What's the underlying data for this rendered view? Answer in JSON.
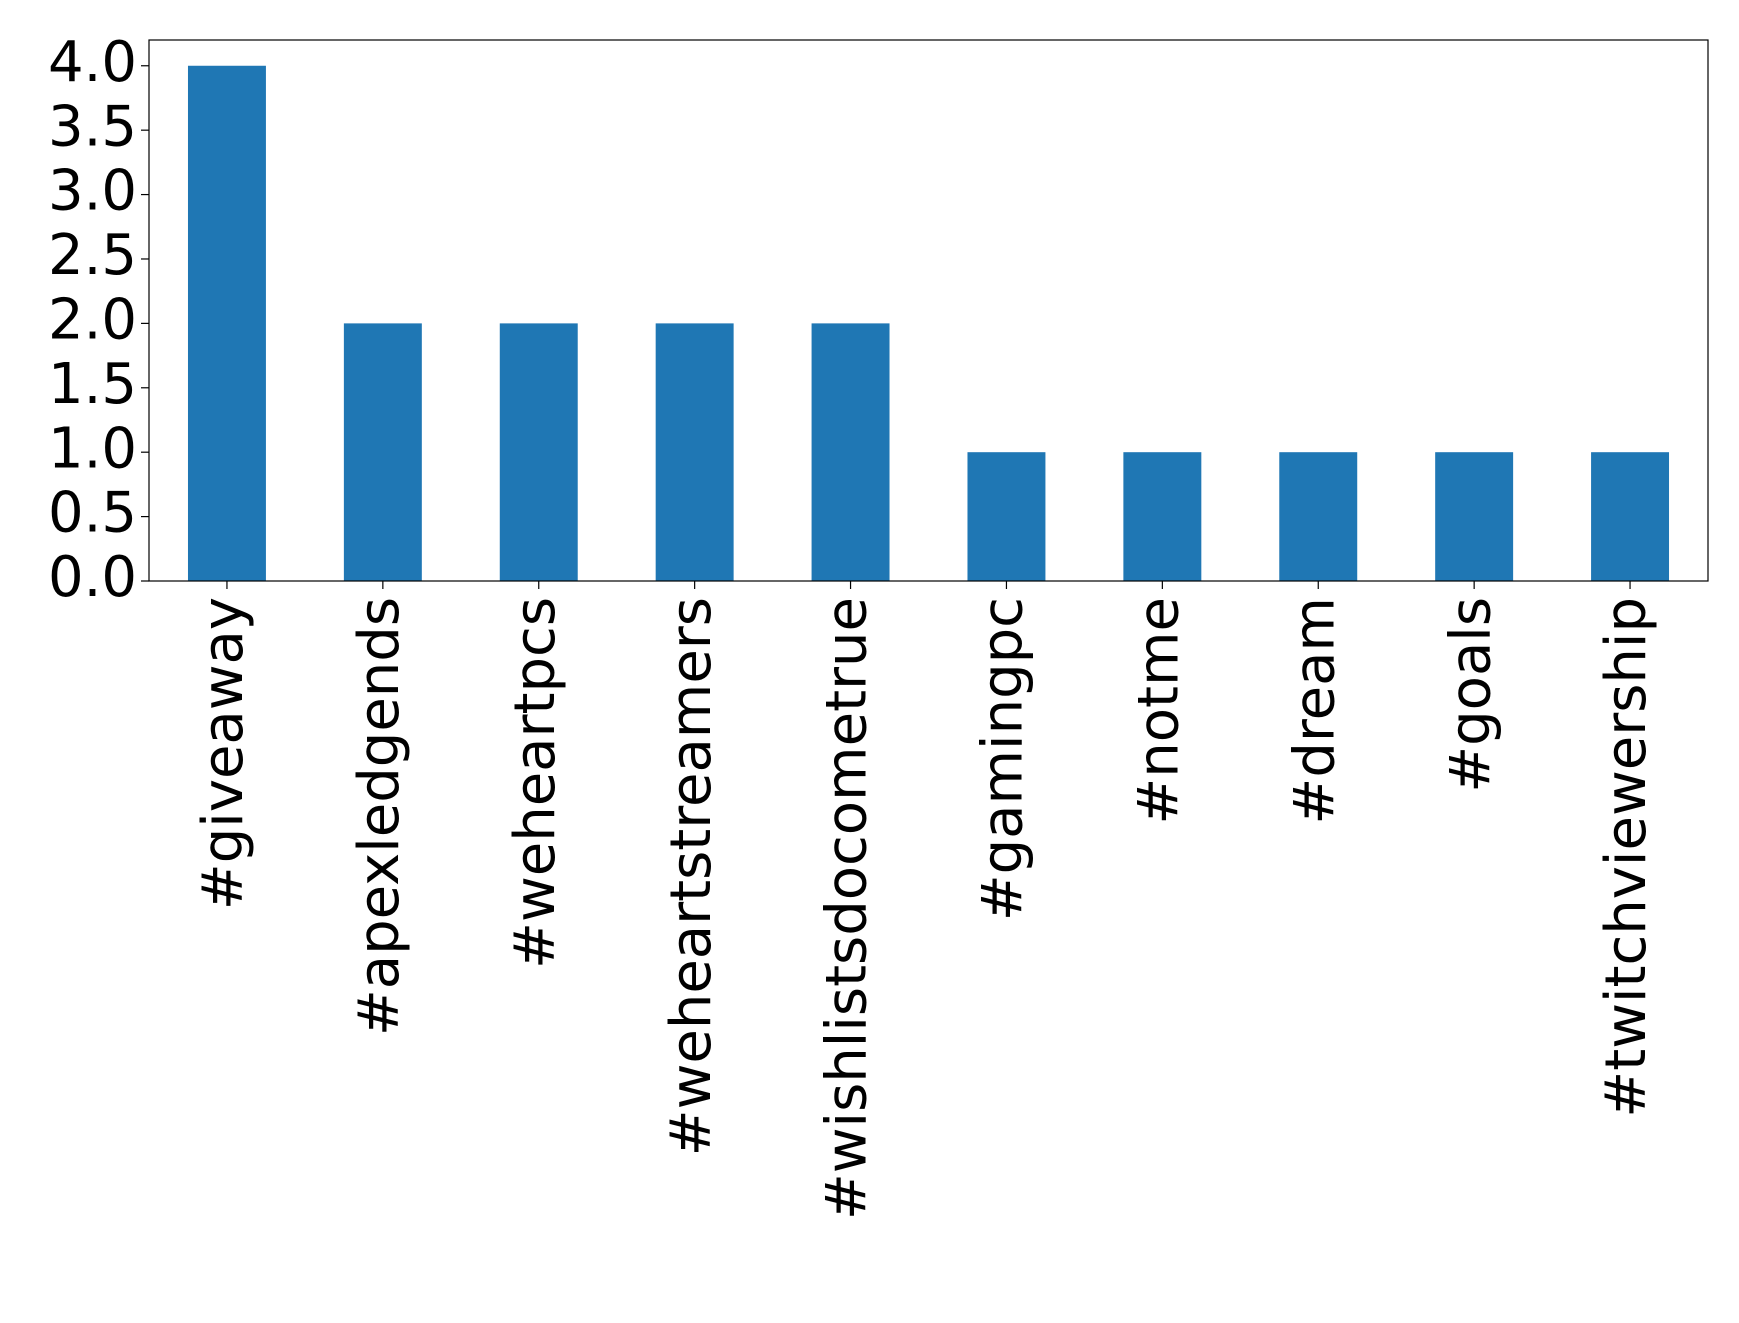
{
  "chart_data": {
    "type": "bar",
    "categories": [
      "#giveaway",
      "#apexledgends",
      "#weheartpcs",
      "#weheartstreamers",
      "#wishlistsdocometrue",
      "#gamingpc",
      "#notme",
      "#dream",
      "#goals",
      "#twitchviewership"
    ],
    "values": [
      4,
      2,
      2,
      2,
      2,
      1,
      1,
      1,
      1,
      1
    ],
    "color": "#1f77b4",
    "ylim": [
      0,
      4.2
    ],
    "yticks": [
      {
        "value": 0,
        "label": "0.0"
      },
      {
        "value": 0.5,
        "label": "0.5"
      },
      {
        "value": 1,
        "label": "1.0"
      },
      {
        "value": 1.5,
        "label": "1.5"
      },
      {
        "value": 2,
        "label": "2.0"
      },
      {
        "value": 2.5,
        "label": "2.5"
      },
      {
        "value": 3,
        "label": "3.0"
      },
      {
        "value": 3.5,
        "label": "3.5"
      },
      {
        "value": 4,
        "label": "4.0"
      }
    ],
    "grid": false
  }
}
